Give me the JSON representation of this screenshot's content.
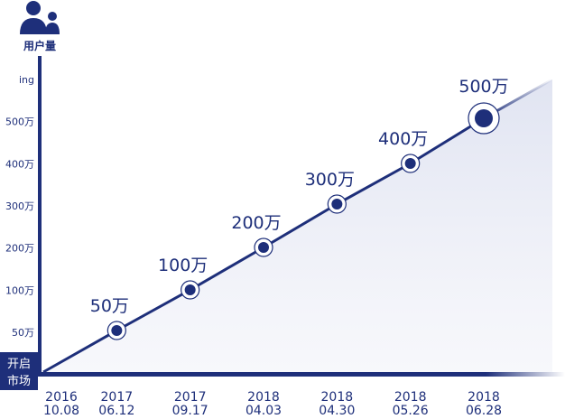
{
  "colors": {
    "primary": "#1e2f7a",
    "fill": "#eef0f8",
    "white": "#ffffff"
  },
  "icons": {
    "y_axis_icon": "users-icon"
  },
  "chart_data": {
    "type": "line",
    "ylabel": "用户量",
    "origin_label": [
      "开启",
      "市场"
    ],
    "y_ticks": [
      "ing",
      "500万",
      "400万",
      "300万",
      "200万",
      "100万",
      "50万"
    ],
    "x_ticks": [
      [
        "2016",
        "10.08"
      ],
      [
        "2017",
        "06.12"
      ],
      [
        "2017",
        "09.17"
      ],
      [
        "2018",
        "04.03"
      ],
      [
        "2018",
        "04.30"
      ],
      [
        "2018",
        "05.26"
      ],
      [
        "2018",
        "06.28"
      ]
    ],
    "series": [
      {
        "values": [
          0,
          50,
          100,
          200,
          300,
          400,
          500
        ]
      }
    ],
    "data_labels": [
      "",
      "50万",
      "100万",
      "200万",
      "300万",
      "400万",
      "500万"
    ],
    "highlight": "2018 06.28",
    "grid": false
  }
}
